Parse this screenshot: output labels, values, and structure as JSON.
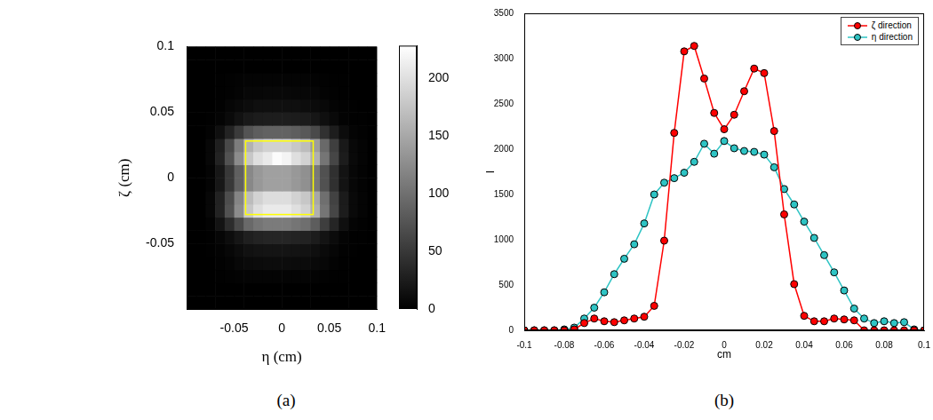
{
  "chart_data": [
    {
      "type": "heatmap",
      "panel_label": "(a)",
      "x_label": "η (cm)",
      "y_label": "ζ (cm)",
      "xlim": [
        -0.1,
        0.1
      ],
      "ylim": [
        -0.1,
        0.1
      ],
      "xticks": [
        -0.05,
        0,
        0.05,
        0.1
      ],
      "yticks": [
        -0.05,
        0,
        0.05,
        0.1
      ],
      "grid": false,
      "x": [
        -0.095,
        -0.085,
        -0.075,
        -0.065,
        -0.055,
        -0.045,
        -0.035,
        -0.025,
        -0.015,
        -0.005,
        0.005,
        0.015,
        0.025,
        0.035,
        0.045,
        0.055,
        0.065,
        0.075,
        0.085,
        0.095
      ],
      "y": [
        -0.095,
        -0.085,
        -0.075,
        -0.065,
        -0.055,
        -0.045,
        -0.035,
        -0.025,
        -0.015,
        -0.005,
        0.005,
        0.015,
        0.025,
        0.035,
        0.045,
        0.055,
        0.065,
        0.075,
        0.085,
        0.095
      ],
      "cells": [
        [
          0,
          0,
          0,
          0,
          0,
          0,
          0,
          0,
          0,
          0,
          0,
          0,
          0,
          0,
          0,
          0,
          0,
          0,
          0,
          0
        ],
        [
          0,
          0,
          0,
          0,
          0,
          0,
          0,
          0,
          0,
          0,
          0,
          0,
          0,
          0,
          0,
          0,
          0,
          0,
          0,
          0
        ],
        [
          0,
          0,
          0,
          1,
          2,
          3,
          4,
          4,
          4,
          4,
          4,
          4,
          4,
          3,
          2,
          1,
          1,
          0,
          0,
          0
        ],
        [
          0,
          0,
          0,
          2,
          4,
          7,
          9,
          10,
          11,
          11,
          11,
          10,
          10,
          8,
          6,
          3,
          1,
          0,
          0,
          0
        ],
        [
          0,
          0,
          1,
          3,
          6,
          11,
          15,
          17,
          18,
          18,
          18,
          17,
          16,
          13,
          9,
          5,
          2,
          1,
          0,
          0
        ],
        [
          0,
          0,
          1,
          5,
          12,
          20,
          28,
          31,
          33,
          33,
          33,
          31,
          30,
          25,
          17,
          10,
          4,
          1,
          1,
          0
        ],
        [
          0,
          0,
          3,
          17,
          39,
          66,
          94,
          105,
          110,
          110,
          110,
          105,
          99,
          83,
          55,
          33,
          13,
          4,
          2,
          0
        ],
        [
          0,
          0,
          6,
          31,
          73,
          125,
          178,
          199,
          209,
          209,
          209,
          199,
          188,
          157,
          105,
          63,
          25,
          8,
          4,
          0
        ],
        [
          0,
          0,
          6,
          30,
          69,
          119,
          168,
          188,
          198,
          198,
          198,
          188,
          178,
          149,
          99,
          59,
          24,
          8,
          4,
          0
        ],
        [
          0,
          0,
          4,
          21,
          50,
          86,
          122,
          136,
          143,
          143,
          143,
          136,
          129,
          107,
          72,
          43,
          17,
          6,
          3,
          0
        ],
        [
          0,
          0,
          4,
          21,
          50,
          86,
          122,
          136,
          143,
          143,
          143,
          136,
          129,
          107,
          72,
          43,
          17,
          6,
          3,
          0
        ],
        [
          0,
          0,
          6,
          31,
          73,
          125,
          178,
          199,
          209,
          225,
          218,
          199,
          188,
          157,
          105,
          63,
          25,
          8,
          4,
          0
        ],
        [
          0,
          0,
          6,
          28,
          65,
          112,
          159,
          178,
          187,
          187,
          187,
          178,
          168,
          140,
          94,
          56,
          22,
          7,
          4,
          0
        ],
        [
          0,
          0,
          3,
          13,
          31,
          53,
          75,
          84,
          88,
          88,
          88,
          84,
          79,
          66,
          44,
          26,
          11,
          4,
          2,
          0
        ],
        [
          0,
          0,
          1,
          4,
          9,
          16,
          22,
          25,
          26,
          26,
          26,
          25,
          24,
          20,
          13,
          8,
          3,
          1,
          1,
          0
        ],
        [
          0,
          0,
          0,
          2,
          5,
          8,
          11,
          13,
          13,
          13,
          13,
          13,
          12,
          10,
          7,
          4,
          2,
          1,
          0,
          0
        ],
        [
          0,
          0,
          0,
          1,
          2,
          4,
          6,
          6,
          7,
          7,
          7,
          6,
          6,
          5,
          3,
          2,
          1,
          0,
          0,
          0
        ],
        [
          0,
          0,
          0,
          1,
          2,
          3,
          4,
          4,
          4,
          4,
          4,
          4,
          4,
          3,
          2,
          1,
          1,
          0,
          0,
          0
        ],
        [
          0,
          0,
          0,
          0,
          0,
          0,
          0,
          0,
          0,
          0,
          0,
          0,
          0,
          0,
          0,
          0,
          0,
          0,
          0,
          0
        ],
        [
          0,
          0,
          0,
          0,
          0,
          0,
          0,
          0,
          0,
          0,
          0,
          0,
          0,
          0,
          0,
          0,
          0,
          0,
          0,
          0
        ]
      ],
      "colorbar": {
        "range": [
          0,
          228
        ],
        "ticks": [
          0,
          50,
          100,
          150,
          200
        ]
      },
      "box": {
        "x": [
          -0.038,
          0.033
        ],
        "y": [
          -0.028,
          0.028
        ],
        "color": "#ffff00"
      }
    },
    {
      "type": "line",
      "panel_label": "(b)",
      "x_label": "cm",
      "y_label": "I",
      "xlim": [
        -0.1,
        0.1
      ],
      "xticks": [
        -0.1,
        -0.08,
        -0.06,
        -0.04,
        -0.02,
        0,
        0.02,
        0.04,
        0.06,
        0.08,
        0.1
      ],
      "ylim": [
        0,
        3500
      ],
      "yticks": [
        0,
        500,
        1000,
        1500,
        2000,
        2500,
        3000,
        3500
      ],
      "grid": false,
      "legend": "upper right",
      "x": [
        -0.1,
        -0.095,
        -0.09,
        -0.085,
        -0.08,
        -0.075,
        -0.07,
        -0.065,
        -0.06,
        -0.055,
        -0.05,
        -0.045,
        -0.04,
        -0.035,
        -0.03,
        -0.025,
        -0.02,
        -0.015,
        -0.01,
        -0.005,
        0,
        0.005,
        0.01,
        0.015,
        0.02,
        0.025,
        0.03,
        0.035,
        0.04,
        0.045,
        0.05,
        0.055,
        0.06,
        0.065,
        0.07,
        0.075,
        0.08,
        0.085,
        0.09,
        0.095,
        0.1
      ],
      "series": [
        {
          "name": "ζ direction",
          "color": "#ff0000",
          "marker": "circle",
          "values": [
            0,
            0,
            0,
            0,
            0,
            10,
            80,
            130,
            100,
            90,
            110,
            130,
            150,
            270,
            990,
            2180,
            3080,
            3140,
            2780,
            2400,
            2220,
            2380,
            2640,
            2890,
            2840,
            2200,
            1280,
            510,
            160,
            100,
            100,
            130,
            120,
            110,
            0,
            0,
            0,
            0,
            0,
            0,
            0
          ]
        },
        {
          "name": "η direction",
          "color": "#2ec4c4",
          "marker": "circle",
          "values": [
            0,
            0,
            0,
            0,
            10,
            30,
            130,
            250,
            420,
            620,
            790,
            950,
            1180,
            1500,
            1630,
            1680,
            1740,
            1860,
            2060,
            1950,
            2090,
            2010,
            1980,
            1970,
            1940,
            1800,
            1560,
            1390,
            1200,
            1020,
            830,
            640,
            440,
            240,
            130,
            80,
            100,
            80,
            90,
            10,
            0
          ]
        }
      ]
    }
  ]
}
